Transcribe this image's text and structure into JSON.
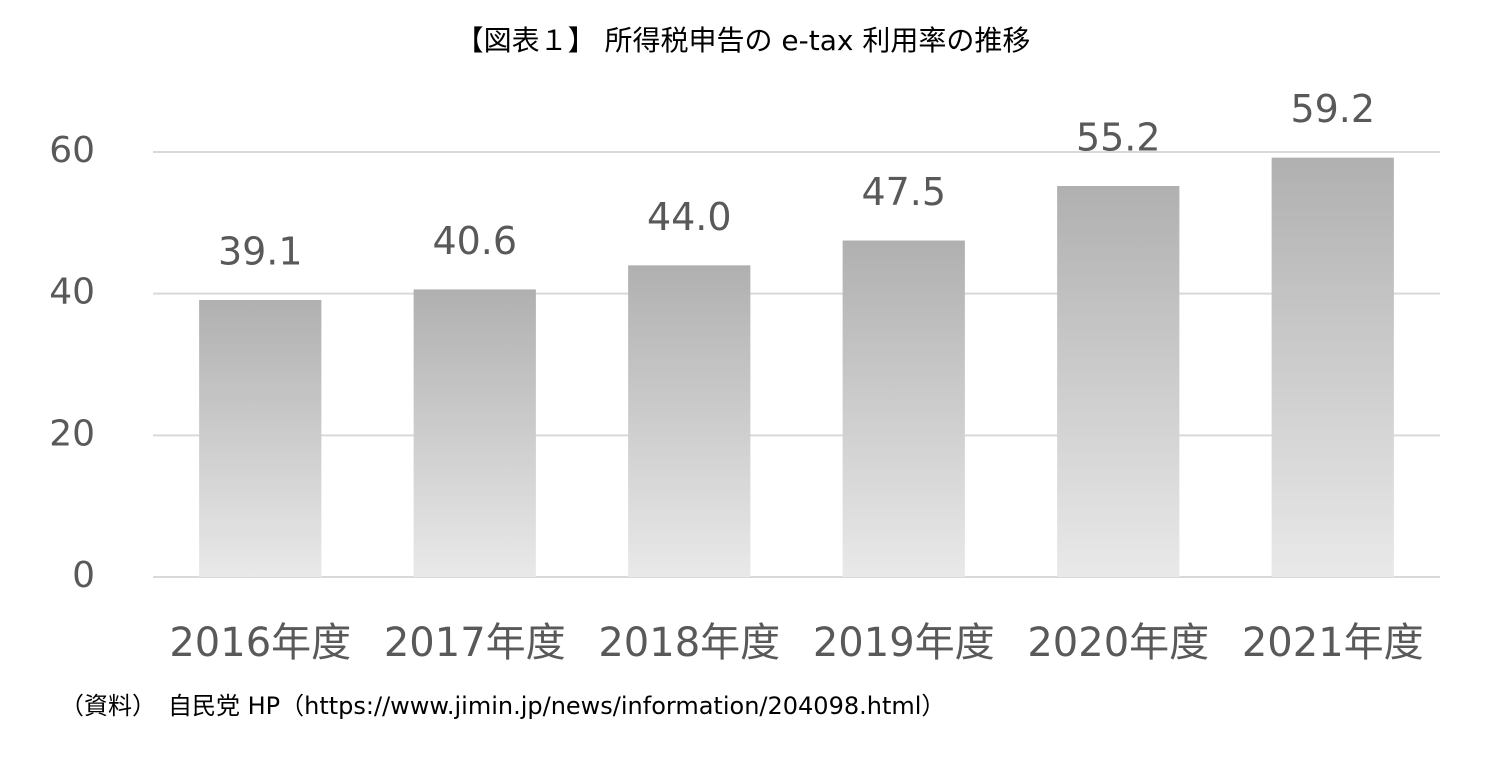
{
  "chart_data": {
    "type": "bar",
    "title": "【図表１】 所得税申告の e-tax 利用率の推移",
    "categories": [
      "2016年度",
      "2017年度",
      "2018年度",
      "2019年度",
      "2020年度",
      "2021年度"
    ],
    "values": [
      39.1,
      40.6,
      44.0,
      47.5,
      55.2,
      59.2
    ],
    "value_labels": [
      "39.1",
      "40.6",
      "44.0",
      "47.5",
      "55.2",
      "59.2"
    ],
    "color": "#b0b0b0",
    "ylim": [
      0,
      60
    ],
    "yticks": [
      0,
      20,
      40,
      60
    ],
    "grid": true,
    "source": "（資料）　自民党 HP（https://www.jimin.jp/news/information/204098.html）"
  }
}
